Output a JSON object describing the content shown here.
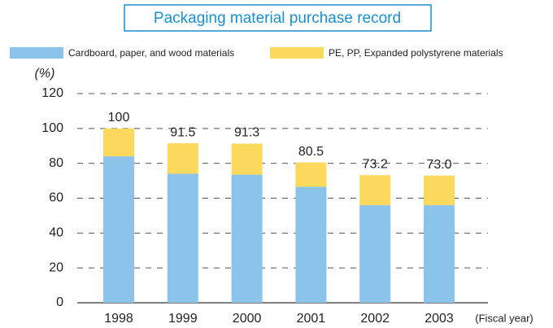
{
  "chart_data": {
    "type": "stacked_bar",
    "title": "Packaging material purchase record",
    "y_label": "(%)",
    "x_label": "(Fiscal year)",
    "categories": [
      "1998",
      "1999",
      "2000",
      "2001",
      "2002",
      "2003"
    ],
    "series": [
      {
        "name": "Cardboard, paper, and wood materials",
        "color": "#8cc3ea",
        "values": [
          84,
          74,
          73.5,
          66.5,
          56,
          56
        ]
      },
      {
        "name": "PE, PP, Expanded polystyrene materials",
        "color": "#fad95c",
        "values": [
          16,
          17.5,
          17.8,
          14,
          17.2,
          17
        ]
      }
    ],
    "totals": [
      100,
      91.5,
      91.3,
      80.5,
      73.2,
      73
    ],
    "total_labels": [
      "100",
      "91.5",
      "91.3",
      "80.5",
      "73.2",
      "73.0"
    ],
    "ylim": [
      0,
      120
    ],
    "yticks": [
      0,
      20,
      40,
      60,
      80,
      100,
      120
    ],
    "grid": true
  }
}
